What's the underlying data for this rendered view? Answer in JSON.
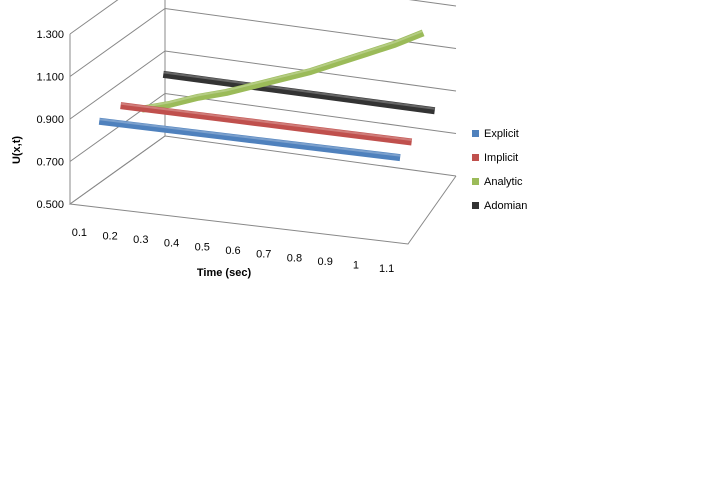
{
  "chart_data": {
    "type": "line",
    "style": "3d-line",
    "x": [
      "0.1",
      "0.2",
      "0.3",
      "0.4",
      "0.5",
      "0.6",
      "0.7",
      "0.8",
      "0.9",
      "1",
      "1.1"
    ],
    "xlabel": "Time (sec)",
    "ylabel": "U(x,t)",
    "yticks": [
      "0.500",
      "0.700",
      "0.900",
      "1.100",
      "1.300"
    ],
    "ylim": [
      0.5,
      1.3
    ],
    "grid": true,
    "legend": "right",
    "series": [
      {
        "name": "Explicit",
        "color": "#4F81BD",
        "values": [
          0.85,
          0.85,
          0.85,
          0.85,
          0.85,
          0.85,
          0.85,
          0.85,
          0.85,
          0.85,
          0.85
        ]
      },
      {
        "name": "Implicit",
        "color": "#C0504D",
        "values": [
          0.85,
          0.85,
          0.85,
          0.85,
          0.85,
          0.85,
          0.85,
          0.85,
          0.85,
          0.85,
          0.85
        ]
      },
      {
        "name": "Analytic",
        "color": "#9BBB59",
        "values": [
          0.76,
          0.8,
          0.85,
          0.89,
          0.94,
          0.99,
          1.04,
          1.1,
          1.16,
          1.22,
          1.29
        ]
      },
      {
        "name": "Adomian",
        "color": "#333333",
        "values": [
          0.85,
          0.85,
          0.85,
          0.85,
          0.85,
          0.85,
          0.85,
          0.85,
          0.85,
          0.85,
          0.85
        ]
      }
    ]
  }
}
